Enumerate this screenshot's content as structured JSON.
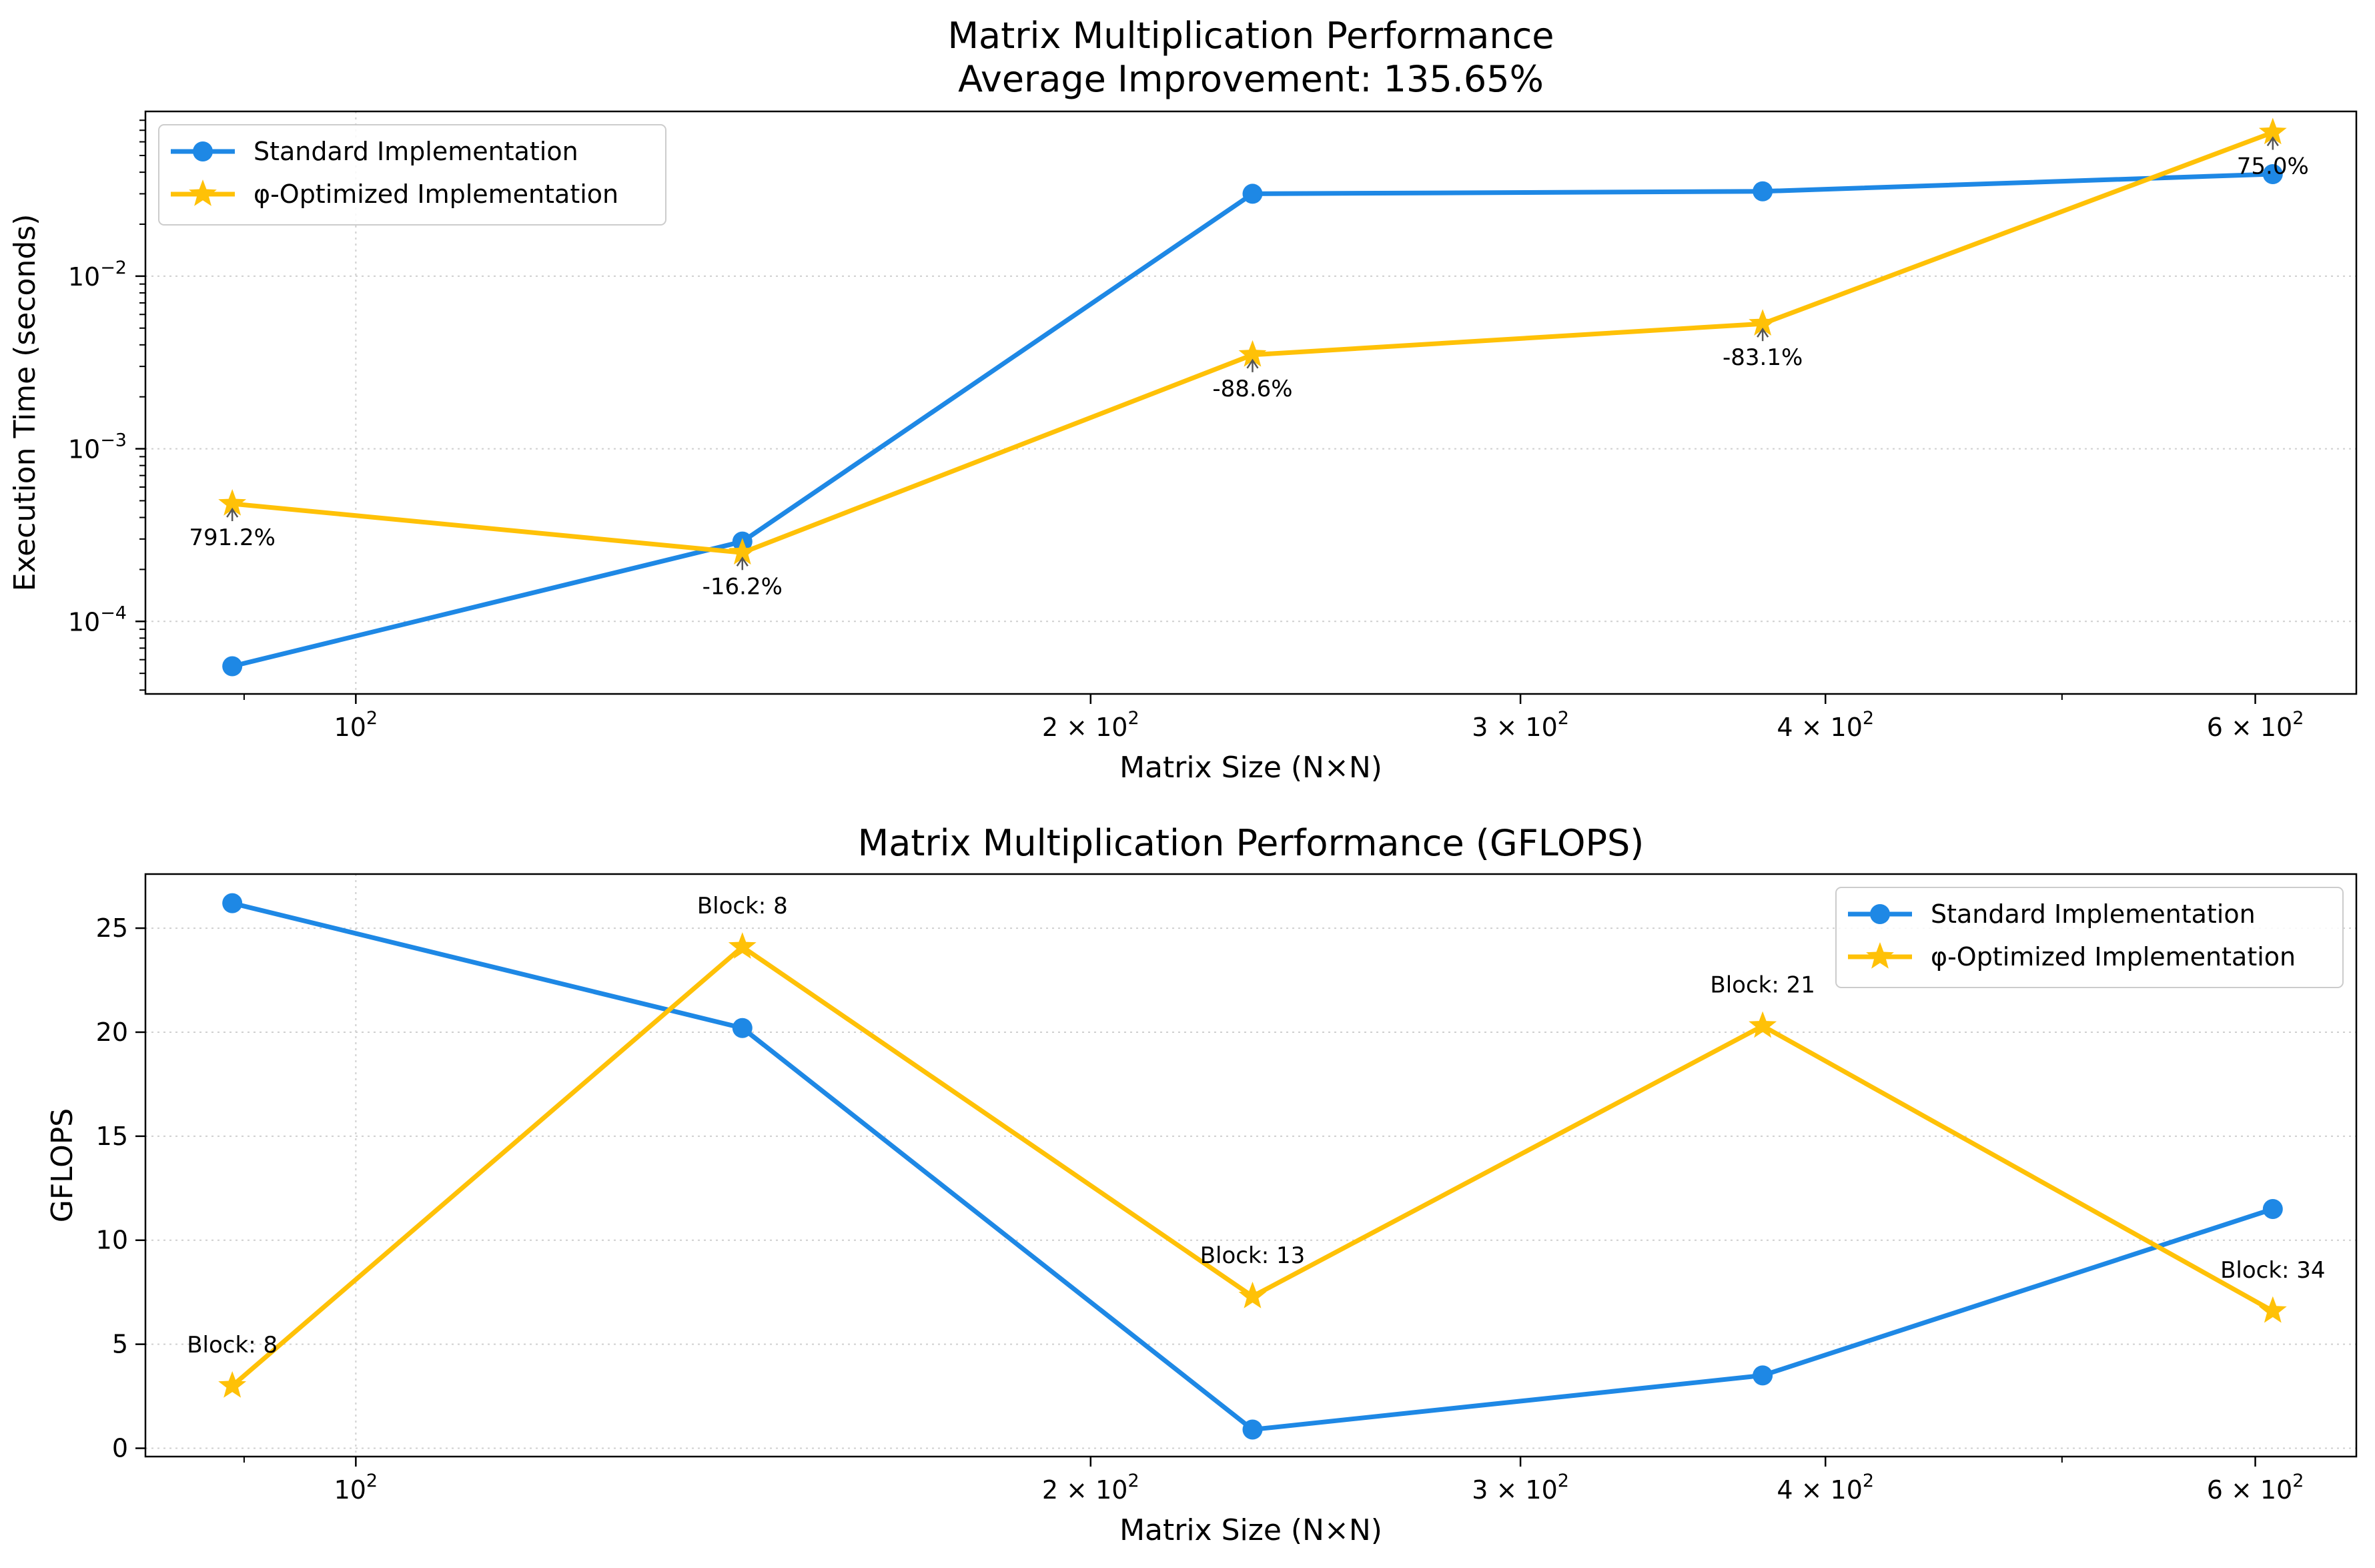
{
  "chart_data": [
    {
      "type": "line",
      "title": "Matrix Multiplication Performance",
      "subtitle": "Average Improvement: 135.65%",
      "xlabel": "Matrix Size (N×N)",
      "ylabel": "Execution Time (seconds)",
      "xscale": "log",
      "yscale": "log",
      "xlim": [
        82,
        660
      ],
      "ylim": [
        3.8e-05,
        0.09
      ],
      "grid": true,
      "legend": "top-left",
      "x": [
        89,
        144,
        233,
        377,
        610
      ],
      "series": [
        {
          "name": "Standard Implementation",
          "color": "#1E88E5",
          "marker": "circle",
          "values": [
            5.5e-05,
            0.00029,
            0.03,
            0.031,
            0.039
          ]
        },
        {
          "name": "φ-Optimized Implementation",
          "color": "#FFC107",
          "marker": "star",
          "values": [
            0.00048,
            0.00025,
            0.0035,
            0.0053,
            0.068
          ]
        }
      ],
      "annotations": [
        "791.2%",
        "-16.2%",
        "-88.6%",
        "-83.1%",
        "75.0%"
      ],
      "x_ticks": [
        {
          "value": 100,
          "base": "10",
          "exp": "2"
        },
        {
          "value": 200,
          "base": "2 × 10",
          "exp": "2"
        },
        {
          "value": 300,
          "base": "3 × 10",
          "exp": "2"
        },
        {
          "value": 400,
          "base": "4 × 10",
          "exp": "2"
        },
        {
          "value": 600,
          "base": "6 × 10",
          "exp": "2"
        }
      ],
      "y_ticks": [
        {
          "value": 0.0001,
          "base": "10",
          "exp": "−4"
        },
        {
          "value": 0.001,
          "base": "10",
          "exp": "−3"
        },
        {
          "value": 0.01,
          "base": "10",
          "exp": "−2"
        }
      ]
    },
    {
      "type": "line",
      "title": "Matrix Multiplication Performance (GFLOPS)",
      "xlabel": "Matrix Size (N×N)",
      "ylabel": "GFLOPS",
      "xscale": "log",
      "yscale": "linear",
      "xlim": [
        82,
        660
      ],
      "ylim": [
        -0.4,
        27.6
      ],
      "grid": true,
      "legend": "top-right",
      "x": [
        89,
        144,
        233,
        377,
        610
      ],
      "series": [
        {
          "name": "Standard Implementation",
          "color": "#1E88E5",
          "marker": "circle",
          "values": [
            26.2,
            20.2,
            0.9,
            3.5,
            11.5
          ]
        },
        {
          "name": "φ-Optimized Implementation",
          "color": "#FFC107",
          "marker": "star",
          "values": [
            3.0,
            24.1,
            7.3,
            20.3,
            6.6
          ]
        }
      ],
      "annotations": [
        "Block: 8",
        "Block: 8",
        "Block: 13",
        "Block: 21",
        "Block: 34"
      ],
      "x_ticks": [
        {
          "value": 100,
          "base": "10",
          "exp": "2"
        },
        {
          "value": 200,
          "base": "2 × 10",
          "exp": "2"
        },
        {
          "value": 300,
          "base": "3 × 10",
          "exp": "2"
        },
        {
          "value": 400,
          "base": "4 × 10",
          "exp": "2"
        },
        {
          "value": 600,
          "base": "6 × 10",
          "exp": "2"
        }
      ],
      "y_ticks": [
        {
          "value": 0,
          "label": "0"
        },
        {
          "value": 5,
          "label": "5"
        },
        {
          "value": 10,
          "label": "10"
        },
        {
          "value": 15,
          "label": "15"
        },
        {
          "value": 20,
          "label": "20"
        },
        {
          "value": 25,
          "label": "25"
        }
      ]
    }
  ]
}
